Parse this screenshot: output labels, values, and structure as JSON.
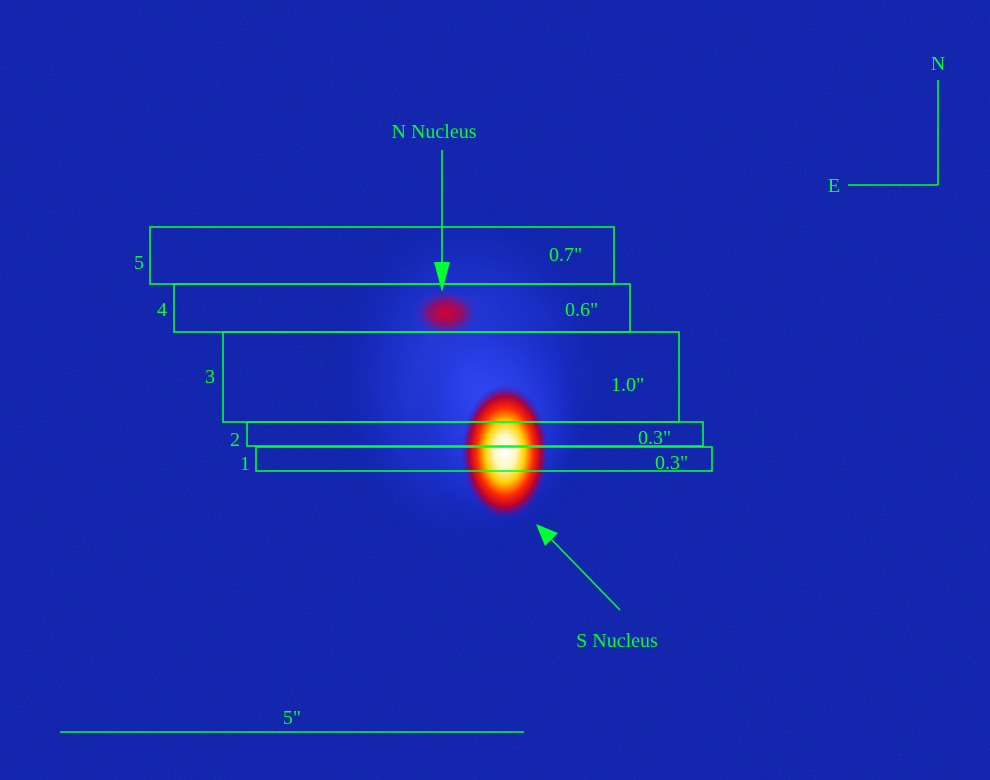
{
  "image": {
    "background_color": "#0a1aa8",
    "annotation_color": "#00ff33"
  },
  "compass": {
    "north_label": "N",
    "east_label": "E"
  },
  "labels": {
    "n_nucleus": "N Nucleus",
    "s_nucleus": "S Nucleus"
  },
  "slits": [
    {
      "number": "5",
      "width_label": "0.7\""
    },
    {
      "number": "4",
      "width_label": "0.6\""
    },
    {
      "number": "3",
      "width_label": "1.0\""
    },
    {
      "number": "2",
      "width_label": "0.3\""
    },
    {
      "number": "1",
      "width_label": "0.3\""
    }
  ],
  "scale_bar": {
    "label": "5\""
  }
}
